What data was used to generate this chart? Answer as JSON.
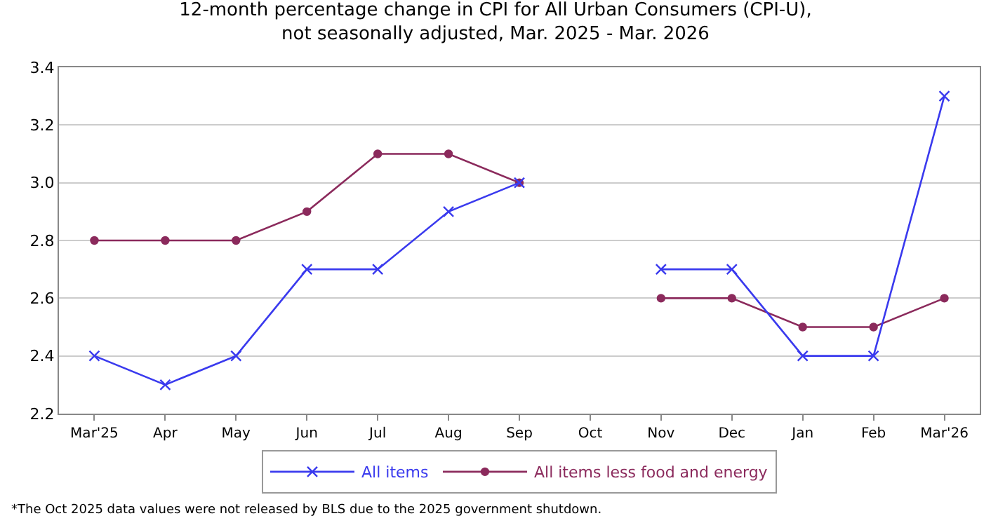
{
  "chart_data": {
    "type": "line",
    "title": "12-month percentage change in CPI for All Urban Consumers (CPI-U),\nnot seasonally adjusted, Mar. 2025 - Mar. 2026",
    "categories": [
      "Mar'25",
      "Apr",
      "May",
      "Jun",
      "Jul",
      "Aug",
      "Sep",
      "Oct",
      "Nov",
      "Dec",
      "Jan",
      "Feb",
      "Mar'26"
    ],
    "series": [
      {
        "name": "All items",
        "color": "#3a3aee",
        "marker": "cross",
        "values": [
          2.4,
          2.3,
          2.4,
          2.7,
          2.7,
          2.9,
          3.0,
          null,
          2.7,
          2.7,
          2.4,
          2.4,
          3.3
        ]
      },
      {
        "name": "All items less food and energy",
        "color": "#8b2a5c",
        "marker": "circle",
        "values": [
          2.8,
          2.8,
          2.8,
          2.9,
          3.1,
          3.1,
          3.0,
          null,
          2.6,
          2.6,
          2.5,
          2.5,
          2.6
        ]
      }
    ],
    "ylim": [
      2.2,
      3.4
    ],
    "yticks": [
      2.2,
      2.4,
      2.6,
      2.8,
      {
        "value": 3,
        "label": "3.0"
      },
      3.2,
      3.4
    ],
    "grid": "y",
    "legend": "bottom",
    "line_style": "solid",
    "annotations": [
      "*The Oct 2025 data values were not released by BLS due to the 2025 government shutdown."
    ]
  }
}
